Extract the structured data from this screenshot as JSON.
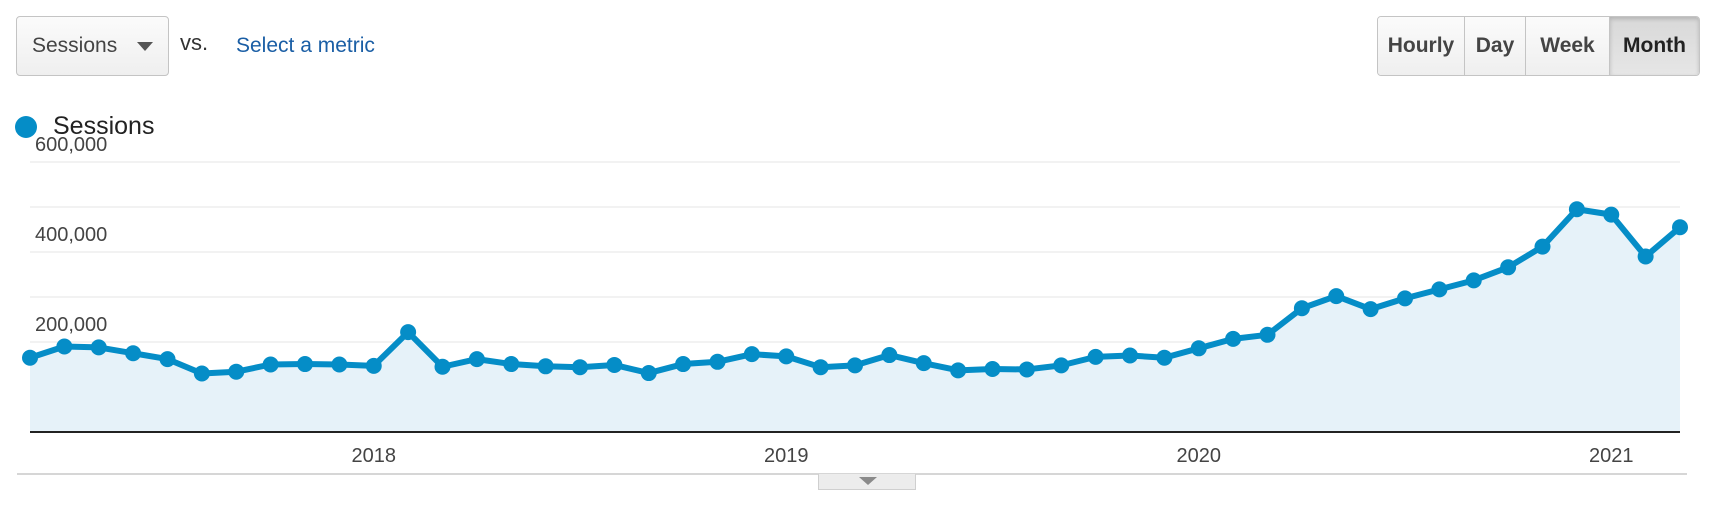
{
  "controls": {
    "metric_select": {
      "value": "Sessions",
      "icon": "caret-down-icon"
    },
    "vs_label": "vs.",
    "select_metric_link": "Select a metric",
    "granularity": [
      {
        "label": "Hourly",
        "active": false
      },
      {
        "label": "Day",
        "active": false
      },
      {
        "label": "Week",
        "active": false
      },
      {
        "label": "Month",
        "active": true
      }
    ]
  },
  "colors": {
    "series": "#058dc7",
    "area_fill": "#e6f2f9",
    "grid": "#e6e6e6",
    "axis": "#222222"
  },
  "chart_data": {
    "type": "line",
    "title": "",
    "xlabel": "",
    "ylabel": "",
    "legend": {
      "position": "top-left",
      "entries": [
        "Sessions"
      ]
    },
    "grid": true,
    "area": true,
    "y_ticks": [
      "600,000",
      "400,000",
      "200,000"
    ],
    "y_tick_values": [
      600000,
      400000,
      200000
    ],
    "ylim": [
      0,
      600000
    ],
    "x_tick_labels": [
      "2018",
      "2019",
      "2020",
      "2021"
    ],
    "x_tick_dates": [
      "2018-01",
      "2019-01",
      "2020-01",
      "2021-01"
    ],
    "x": [
      "2017-03",
      "2017-04",
      "2017-05",
      "2017-06",
      "2017-07",
      "2017-08",
      "2017-09",
      "2017-10",
      "2017-11",
      "2017-12",
      "2018-01",
      "2018-02",
      "2018-03",
      "2018-04",
      "2018-05",
      "2018-06",
      "2018-07",
      "2018-08",
      "2018-09",
      "2018-10",
      "2018-11",
      "2018-12",
      "2019-01",
      "2019-02",
      "2019-03",
      "2019-04",
      "2019-05",
      "2019-06",
      "2019-07",
      "2019-08",
      "2019-09",
      "2019-10",
      "2019-11",
      "2019-12",
      "2020-01",
      "2020-02",
      "2020-03",
      "2020-04",
      "2020-05",
      "2020-06",
      "2020-07",
      "2020-08",
      "2020-09",
      "2020-10",
      "2020-11",
      "2020-12",
      "2021-01",
      "2021-02",
      "2021-03"
    ],
    "series": [
      {
        "name": "Sessions",
        "values": [
          165000,
          190000,
          188000,
          175000,
          162000,
          130000,
          134000,
          150000,
          151000,
          150000,
          147000,
          222000,
          145000,
          162000,
          151000,
          146000,
          144000,
          149000,
          131000,
          151000,
          156000,
          173000,
          168000,
          144000,
          148000,
          171000,
          153000,
          137000,
          140000,
          139000,
          148000,
          167000,
          170000,
          165000,
          186000,
          207000,
          216000,
          275000,
          302000,
          273000,
          297000,
          317000,
          337000,
          366000,
          412000,
          495000,
          483000,
          390000,
          455000
        ]
      }
    ]
  }
}
